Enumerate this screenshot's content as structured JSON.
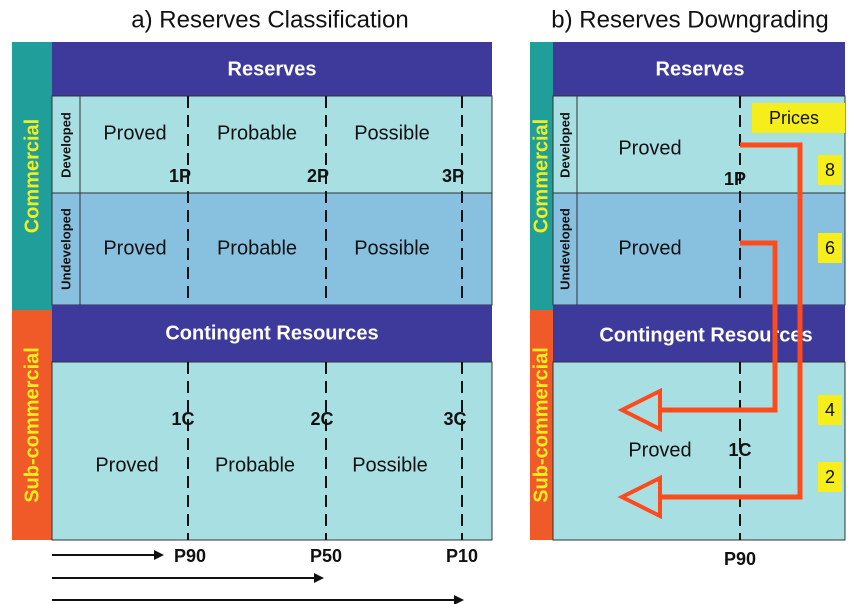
{
  "panel_a": {
    "title": "a) Reserves Classification",
    "commercial": "Commercial",
    "sub_commercial": "Sub-commercial",
    "reserves_header": "Reserves",
    "developed": "Developed",
    "undeveloped": "Undeveloped",
    "developed_row": [
      "Proved",
      "Probable",
      "Possible"
    ],
    "reserve_markers": [
      "1P",
      "2P",
      "3P"
    ],
    "undeveloped_row": [
      "Proved",
      "Probable",
      "Possible"
    ],
    "contingent_header": "Contingent Resources",
    "contingent_markers": [
      "1C",
      "2C",
      "3C"
    ],
    "contingent_row": [
      "Proved",
      "Probable",
      "Possible"
    ],
    "probabilities": [
      "P90",
      "P50",
      "P10"
    ]
  },
  "panel_b": {
    "title": "b) Reserves Downgrading",
    "commercial": "Commercial",
    "sub_commercial": "Sub-commercial",
    "reserves_header": "Reserves",
    "developed": "Developed",
    "undeveloped": "Undeveloped",
    "developed_proved": "Proved",
    "reserve_marker": "1P",
    "undeveloped_proved": "Proved",
    "contingent_header": "Contingent Resources",
    "contingent_proved": "Proved",
    "contingent_marker": "1C",
    "probability": "P90",
    "prices": "Prices",
    "steps": [
      8,
      6,
      4,
      2
    ]
  }
}
